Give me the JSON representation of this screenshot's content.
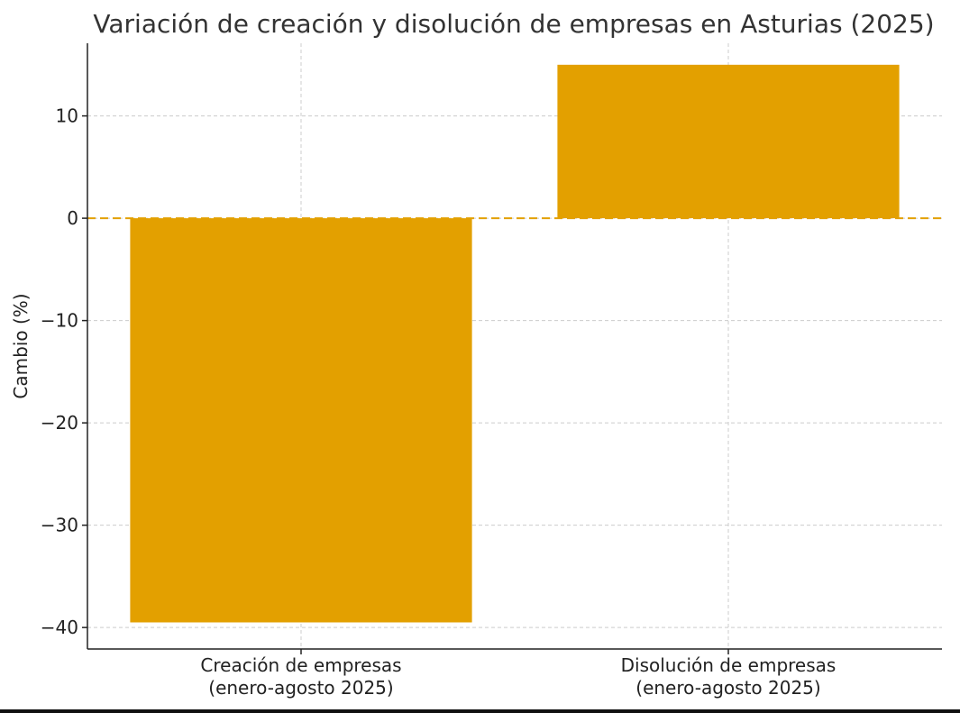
{
  "chart_data": {
    "type": "bar",
    "title": "Variación de creación y disolución de empresas en Asturias (2025)",
    "ylabel": "Cambio (%)",
    "xlabel": "",
    "categories": [
      [
        "Creación de empresas",
        "(enero-agosto 2025)"
      ],
      [
        "Disolución de empresas",
        "(enero-agosto 2025)"
      ]
    ],
    "values": [
      -39.5,
      15
    ],
    "ylim": [
      -42.1,
      17.1
    ],
    "yticks": [
      10,
      0,
      -10,
      -20,
      -30,
      -40
    ],
    "ytick_labels": [
      "10",
      "0",
      "−10",
      "−20",
      "−30",
      "−40"
    ],
    "grid": true,
    "reference_line": 0,
    "colors": {
      "bar": "#E3A000",
      "reference_line": "#E3A000",
      "grid": "#cccccc",
      "axis": "#222222"
    }
  }
}
